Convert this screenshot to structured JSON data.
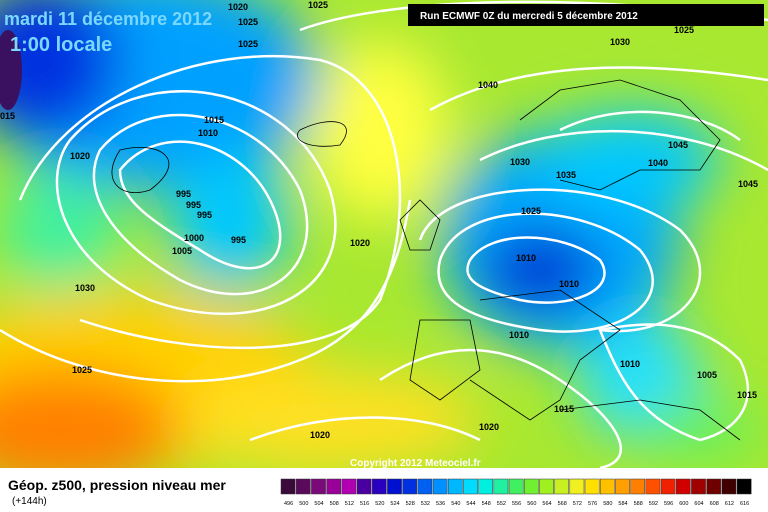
{
  "header": {
    "title": "mardi 11 décembre 2012",
    "time": "1:00 locale",
    "run": "Run ECMWF 0Z du mercredi 5 décembre 2012"
  },
  "isobar_labels": [
    "1020",
    "1025",
    "1025",
    "1025",
    "1025",
    "1030",
    "1040",
    "1015",
    "1010",
    "015",
    "1020",
    "1030",
    "1035",
    "1045",
    "1040",
    "1045",
    "995",
    "995",
    "995",
    "995",
    "1000",
    "1005",
    "1025",
    "1020",
    "1010",
    "1010",
    "1030",
    "1010",
    "1010",
    "1005",
    "1025",
    "1015",
    "1015",
    "1020",
    "1020"
  ],
  "footer": {
    "title": "Géop. z500, pression niveau mer",
    "lead": "(+144h)",
    "copyright": "Copyright 2012 Meteociel.fr"
  },
  "scale": {
    "labels": [
      496,
      500,
      504,
      508,
      512,
      516,
      520,
      524,
      528,
      532,
      536,
      540,
      544,
      548,
      552,
      556,
      560,
      564,
      568,
      572,
      576,
      580,
      584,
      588,
      592,
      596,
      600,
      604,
      608,
      612,
      616
    ],
    "colors": [
      "#3a0a3a",
      "#5a0a5a",
      "#7a0a7a",
      "#990099",
      "#b000b0",
      "#4a00a0",
      "#2a00c0",
      "#0010d0",
      "#0030e0",
      "#0060f0",
      "#0090ff",
      "#00b8ff",
      "#00dcff",
      "#00f0e0",
      "#20f0a0",
      "#40f060",
      "#70f030",
      "#a0f020",
      "#c8f020",
      "#f0f020",
      "#ffe000",
      "#ffc000",
      "#ffa000",
      "#ff8000",
      "#ff5000",
      "#f02000",
      "#d00000",
      "#a00000",
      "#700000",
      "#400000",
      "#000000"
    ]
  }
}
